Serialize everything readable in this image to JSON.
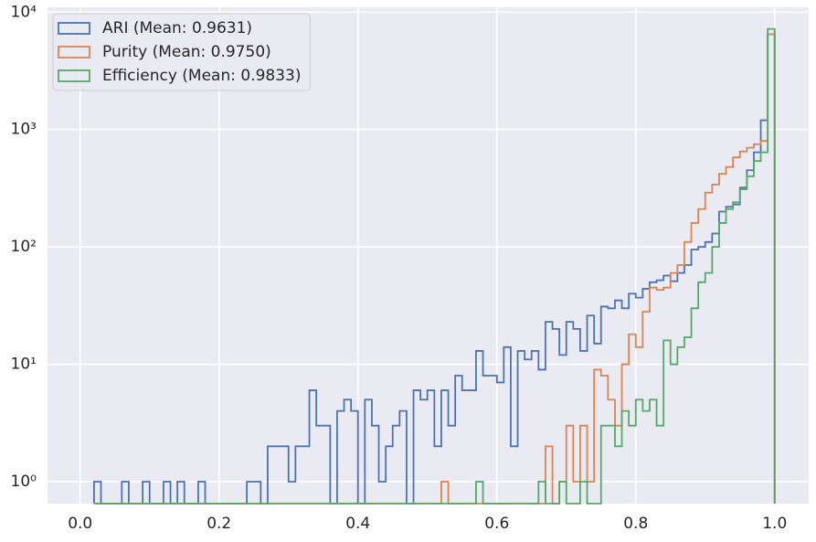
{
  "chart_data": {
    "type": "histogram",
    "histtype": "step",
    "yscale": "log",
    "grid": true,
    "legend_loc": "upper left",
    "xlim": [
      -0.047,
      1.049
    ],
    "ylim": [
      0.65,
      11000
    ],
    "xticks": [
      {
        "value": 0,
        "label": "0.0"
      },
      0.2,
      0.4,
      0.6,
      0.8,
      {
        "value": 1,
        "label": "1.0"
      }
    ],
    "yticks": [
      {
        "value": 1,
        "label": "10⁰"
      },
      {
        "value": 10,
        "label": "10¹"
      },
      {
        "value": 100,
        "label": "10²"
      },
      {
        "value": 1000,
        "label": "10³"
      },
      {
        "value": 10000,
        "label": "10⁴"
      }
    ],
    "bins": [
      0.02,
      0.03,
      0.04,
      0.05,
      0.06,
      0.07,
      0.08,
      0.09,
      0.1,
      0.11,
      0.12,
      0.13,
      0.14,
      0.15,
      0.16,
      0.17,
      0.18,
      0.19,
      0.2,
      0.21,
      0.22,
      0.23,
      0.24,
      0.25,
      0.26,
      0.27,
      0.28,
      0.29,
      0.3,
      0.31,
      0.32,
      0.33,
      0.34,
      0.35,
      0.36,
      0.37,
      0.38,
      0.39,
      0.4,
      0.41,
      0.42,
      0.43,
      0.44,
      0.45,
      0.46,
      0.47,
      0.48,
      0.49,
      0.5,
      0.51,
      0.52,
      0.53,
      0.54,
      0.55,
      0.56,
      0.57,
      0.58,
      0.59,
      0.6,
      0.61,
      0.62,
      0.63,
      0.64,
      0.65,
      0.66,
      0.67,
      0.68,
      0.69,
      0.7,
      0.71,
      0.72,
      0.73,
      0.74,
      0.75,
      0.76,
      0.77,
      0.78,
      0.79,
      0.8,
      0.81,
      0.82,
      0.83,
      0.84,
      0.85,
      0.86,
      0.87,
      0.88,
      0.89,
      0.9,
      0.91,
      0.92,
      0.93,
      0.94,
      0.95,
      0.96,
      0.97,
      0.98,
      0.99,
      1.0
    ],
    "series": [
      {
        "name": "ARI (Mean: 0.9631)",
        "color": "#4c72b0",
        "values": [
          1,
          0,
          0,
          0,
          1,
          0,
          0,
          1,
          0,
          0,
          1,
          0,
          1,
          0,
          0,
          1,
          0,
          0,
          0,
          0,
          0,
          0,
          1,
          1,
          0,
          2,
          2,
          2,
          1,
          2,
          2,
          6,
          3,
          3,
          0,
          4,
          5,
          4,
          0,
          5,
          3,
          1,
          2,
          3,
          4,
          0,
          6,
          5,
          6,
          2,
          6,
          3,
          8,
          6,
          6,
          13,
          8,
          8,
          7,
          14,
          2,
          13,
          11,
          13,
          9,
          23,
          20,
          12,
          23,
          20,
          13,
          26,
          15,
          31,
          30,
          35,
          30,
          40,
          37,
          44,
          50,
          52,
          57,
          51,
          60,
          70,
          95,
          100,
          110,
          130,
          200,
          220,
          230,
          320,
          450,
          640,
          1200,
          6500
        ]
      },
      {
        "name": "Purity (Mean: 0.9750)",
        "color": "#dd8452",
        "values": [
          0,
          0,
          0,
          0,
          0,
          0,
          0,
          0,
          0,
          0,
          0,
          0,
          0,
          0,
          0,
          0,
          0,
          0,
          0,
          0,
          0,
          0,
          0,
          0,
          0,
          0,
          0,
          0,
          0,
          0,
          0,
          0,
          0,
          0,
          0,
          0,
          0,
          0,
          0,
          0,
          0,
          0,
          0,
          0,
          0,
          0,
          0,
          0,
          0,
          0,
          1,
          0,
          0,
          0,
          0,
          0,
          0,
          0,
          0,
          0,
          0,
          0,
          0,
          0,
          0,
          2,
          0,
          1,
          3,
          1,
          3,
          1,
          9,
          8,
          5,
          3,
          10,
          18,
          14,
          28,
          45,
          43,
          45,
          60,
          70,
          110,
          160,
          210,
          290,
          340,
          420,
          480,
          580,
          650,
          700,
          750,
          800,
          6500
        ]
      },
      {
        "name": "Efficiency (Mean: 0.9833)",
        "color": "#55a868",
        "values": [
          0,
          0,
          0,
          0,
          0,
          0,
          0,
          0,
          0,
          0,
          0,
          0,
          0,
          0,
          0,
          0,
          0,
          0,
          0,
          0,
          0,
          0,
          0,
          0,
          0,
          0,
          0,
          0,
          0,
          0,
          0,
          0,
          0,
          0,
          0,
          0,
          0,
          0,
          0,
          0,
          0,
          0,
          0,
          0,
          0,
          0,
          0,
          0,
          0,
          0,
          0,
          0,
          0,
          0,
          0,
          1,
          0,
          0,
          0,
          0,
          0,
          0,
          0,
          0,
          1,
          0,
          0,
          1,
          0,
          0,
          1,
          0,
          0,
          3,
          3,
          2,
          4,
          3,
          5,
          4,
          5,
          3,
          16,
          10,
          14,
          17,
          30,
          50,
          60,
          100,
          160,
          210,
          240,
          310,
          400,
          540,
          640,
          7200
        ]
      }
    ]
  }
}
